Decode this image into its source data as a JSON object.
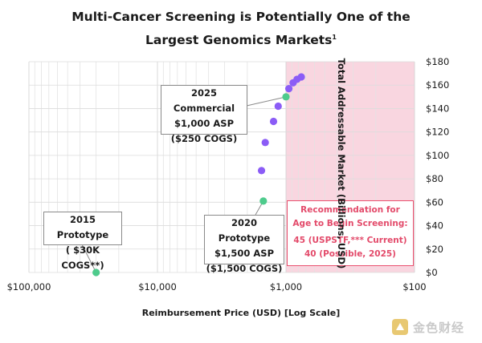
{
  "chart_data": {
    "type": "scatter",
    "title_line1": "Multi-Cancer Screening is Potentially One of the",
    "title_line2": "Largest Genomics Markets",
    "title_footnote": "1",
    "xlabel": "Reimbursement Price (USD) [Log Scale]",
    "ylabel": "Total Addressable Market (Billions, USD)",
    "x_scale": "log",
    "x_reversed": true,
    "xlim": [
      100000,
      100
    ],
    "x_ticks": [
      {
        "value": 100000,
        "label": "$100,000"
      },
      {
        "value": 10000,
        "label": "$10,000"
      },
      {
        "value": 1000,
        "label": "$1,000"
      },
      {
        "value": 100,
        "label": "$100"
      }
    ],
    "ylim": [
      0,
      180
    ],
    "y_ticks": [
      {
        "value": 0,
        "label": "$0"
      },
      {
        "value": 20,
        "label": "$20"
      },
      {
        "value": 40,
        "label": "$40"
      },
      {
        "value": 60,
        "label": "$60"
      },
      {
        "value": 80,
        "label": "$80"
      },
      {
        "value": 100,
        "label": "$100"
      },
      {
        "value": 120,
        "label": "$120"
      },
      {
        "value": 140,
        "label": "$140"
      },
      {
        "value": 160,
        "label": "$160"
      },
      {
        "value": 180,
        "label": "$180"
      }
    ],
    "grid": true,
    "shaded_region": {
      "x_from": 1000,
      "x_to": 100,
      "color": "#f9d6e0"
    },
    "points": [
      {
        "x": 30000,
        "y": 0,
        "color": "#4ecb8c"
      },
      {
        "x": 1500,
        "y": 61,
        "color": "#4ecb8c"
      },
      {
        "x": 1550,
        "y": 87,
        "color": "#8b5cf6"
      },
      {
        "x": 1450,
        "y": 111,
        "color": "#8b5cf6"
      },
      {
        "x": 1250,
        "y": 129,
        "color": "#8b5cf6"
      },
      {
        "x": 1150,
        "y": 142,
        "color": "#8b5cf6"
      },
      {
        "x": 1000,
        "y": 150,
        "color": "#4ecb8c"
      },
      {
        "x": 950,
        "y": 157,
        "color": "#8b5cf6"
      },
      {
        "x": 880,
        "y": 162,
        "color": "#8b5cf6"
      },
      {
        "x": 820,
        "y": 165,
        "color": "#8b5cf6"
      },
      {
        "x": 760,
        "y": 167,
        "color": "#8b5cf6"
      }
    ],
    "annotations": {
      "commercial_2025": [
        "2025 Commercial",
        "$1,000 ASP",
        "($250 COGS)"
      ],
      "prototype_2015": [
        "2015 Prototype",
        "( $30K COGS**)"
      ],
      "prototype_2020": [
        "2020 Prototype",
        "$1,500 ASP",
        "($1,500 COGS)"
      ],
      "recommendation": [
        "Recommendation for",
        "Age to Begin Screening:",
        "45 (USPSTF,*** Current)",
        "40 (Possible, 2025)"
      ]
    }
  },
  "watermark": "金色财经",
  "colors": {
    "green": "#4ecb8c",
    "purple": "#8b5cf6",
    "pink": "#e34a6a"
  }
}
